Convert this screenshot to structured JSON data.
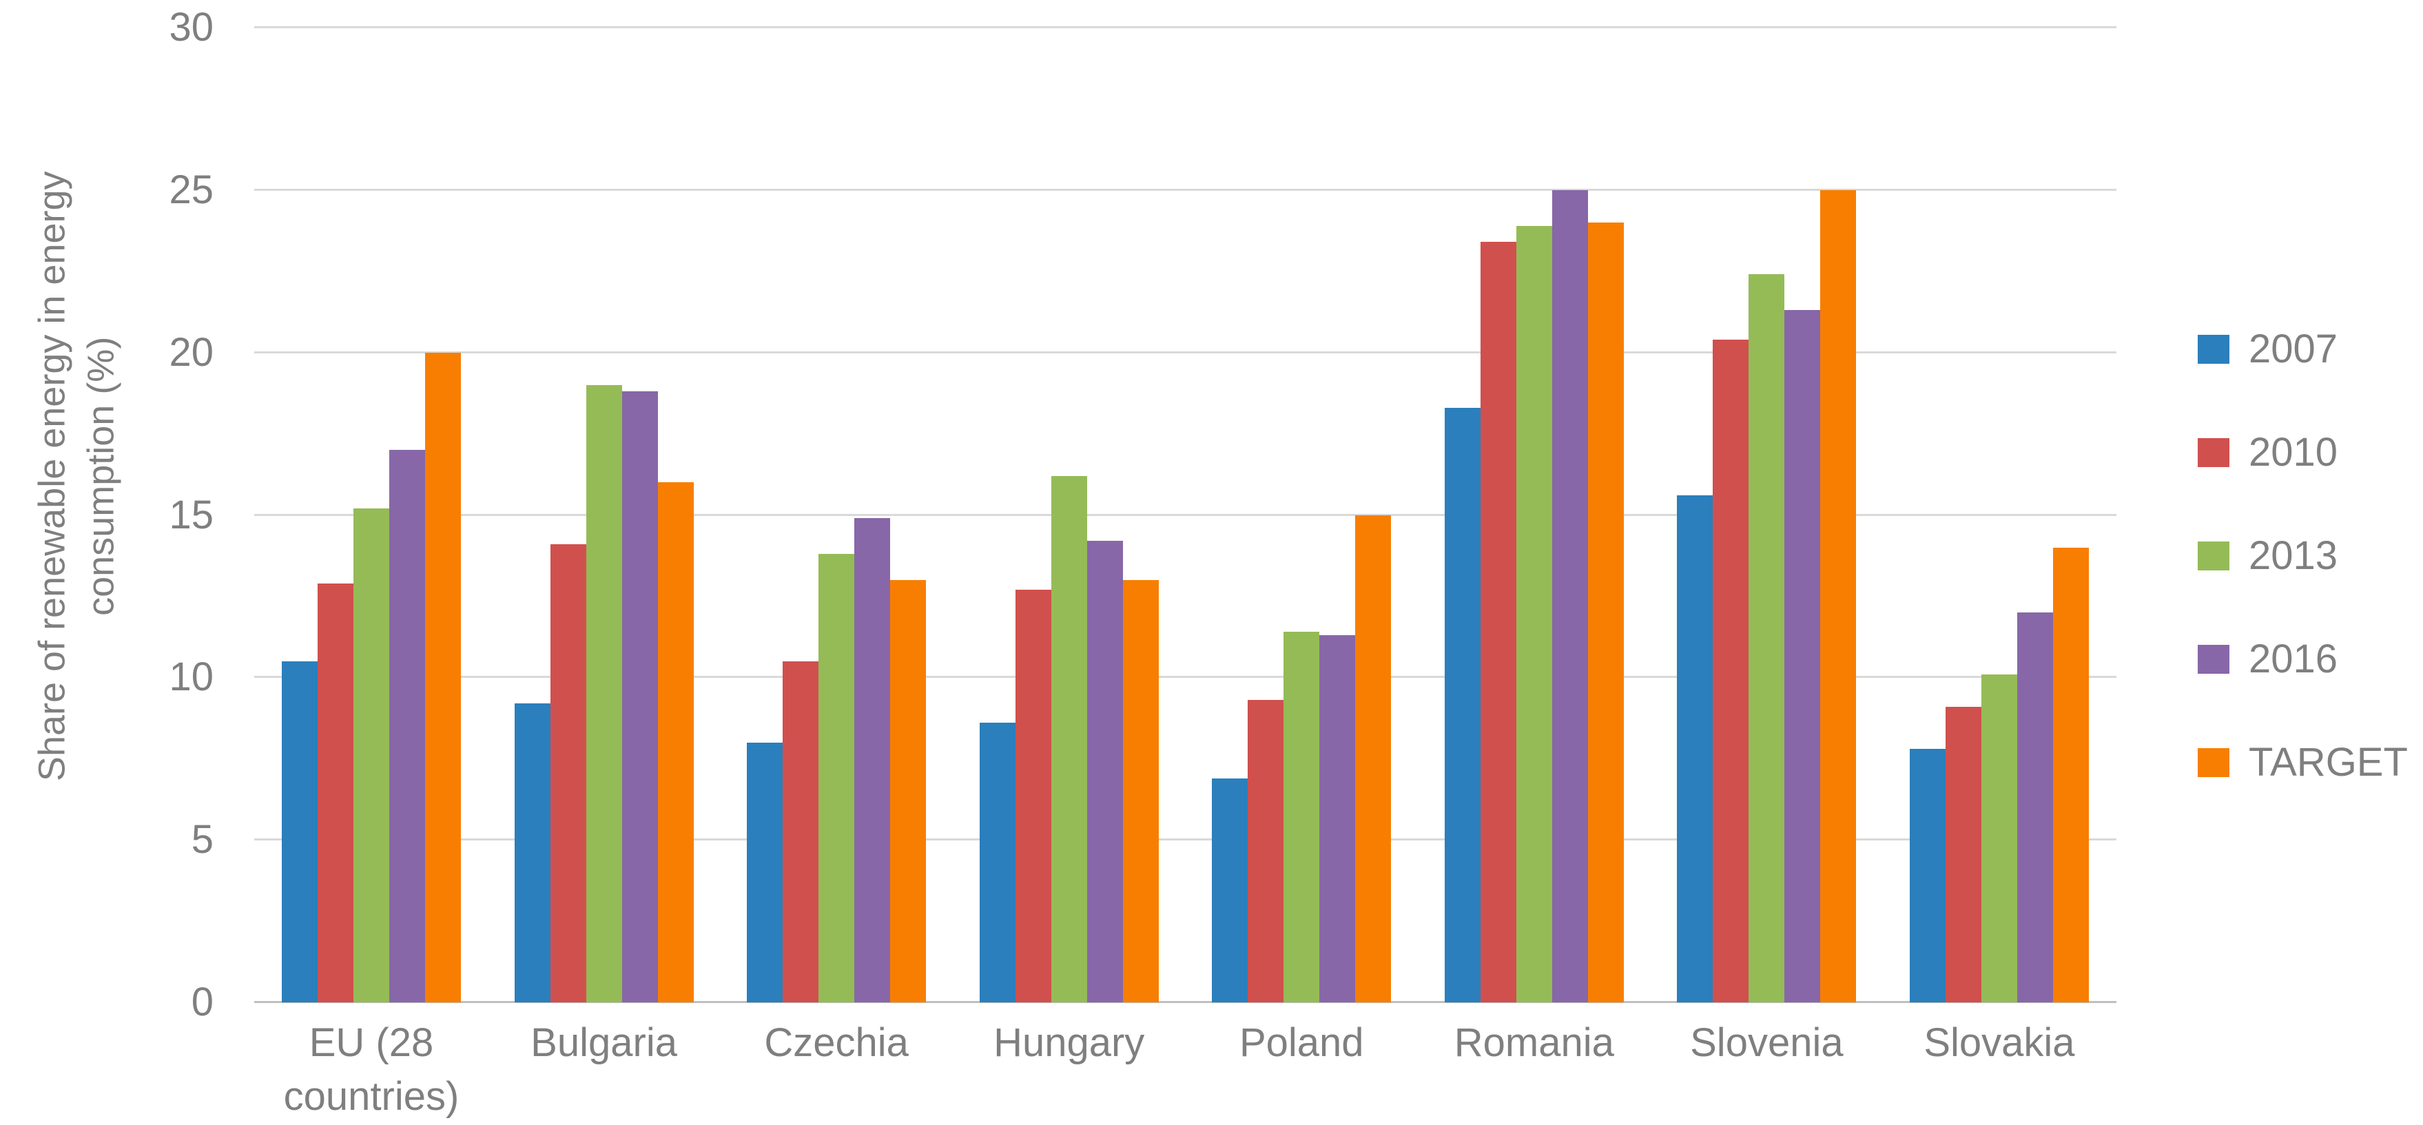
{
  "chart_data": {
    "type": "bar",
    "ylabel": "Share of renewable energy in energy consumption (%)",
    "ylabel_lines": [
      "Share of renewable energy in energy",
      "consumption (%)"
    ],
    "categories": [
      "EU (28 countries)",
      "Bulgaria",
      "Czechia",
      "Hungary",
      "Poland",
      "Romania",
      "Slovenia",
      "Slovakia"
    ],
    "series": [
      {
        "name": "2007",
        "color": "#2a7fbc",
        "values": [
          10.5,
          9.2,
          8.0,
          8.6,
          6.9,
          18.3,
          15.6,
          7.8
        ]
      },
      {
        "name": "2010",
        "color": "#d0504e",
        "values": [
          12.9,
          14.1,
          10.5,
          12.7,
          9.3,
          23.4,
          20.4,
          9.1
        ]
      },
      {
        "name": "2013",
        "color": "#95bb57",
        "values": [
          15.2,
          19.0,
          13.8,
          16.2,
          11.4,
          23.9,
          22.4,
          10.1
        ]
      },
      {
        "name": "2016",
        "color": "#8767a8",
        "values": [
          17.0,
          18.8,
          14.9,
          14.2,
          11.3,
          25.0,
          21.3,
          12.0
        ]
      },
      {
        "name": "TARGET",
        "color": "#f87e01",
        "values": [
          20.0,
          16.0,
          13.0,
          13.0,
          15.0,
          24.0,
          25.0,
          14.0
        ]
      }
    ],
    "ylim": [
      0,
      30
    ],
    "yticks": [
      0,
      5,
      10,
      15,
      20,
      25,
      30
    ],
    "grid": "horizontal",
    "legend_position": "right",
    "colors": {
      "gridline": "#d9d9d9",
      "axis_line": "#bfbfbf",
      "text": "#7f7f7f",
      "background": "#ffffff"
    }
  }
}
